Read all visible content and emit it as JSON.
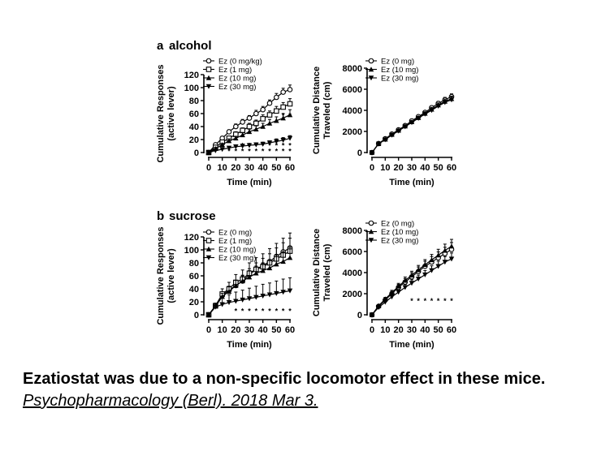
{
  "panels": [
    {
      "letter": "a",
      "name": "alcohol"
    },
    {
      "letter": "b",
      "name": "sucrose"
    }
  ],
  "caption": {
    "text": "Ezatiostat was due to a non-specific locomotor effect in these mice.",
    "source": "Psychopharmacology (Berl). 2018 Mar 3."
  },
  "chart_data": [
    {
      "id": "alcohol-responses",
      "type": "line",
      "ylabel_line1": "Cumulative Responses",
      "ylabel_line2": "(active lever)",
      "xlabel": "Time (min)",
      "xlim": [
        0,
        60
      ],
      "ylim": [
        0,
        120
      ],
      "xticks": [
        0,
        10,
        20,
        30,
        40,
        50,
        60
      ],
      "yticks": [
        0,
        20,
        40,
        60,
        80,
        100,
        120
      ],
      "legend_position": "top-left",
      "x": [
        0,
        5,
        10,
        15,
        20,
        25,
        30,
        35,
        40,
        45,
        50,
        55,
        60
      ],
      "series": [
        {
          "name": "Ez (0 mg/kg)",
          "marker": "circle",
          "values": [
            0,
            12,
            22,
            32,
            40,
            47,
            53,
            60,
            66,
            76,
            85,
            93,
            97
          ],
          "errors": [
            0,
            2,
            3,
            3,
            4,
            4,
            4,
            5,
            5,
            5,
            6,
            6,
            7
          ]
        },
        {
          "name": "Ez (1 mg)",
          "marker": "square",
          "values": [
            0,
            8,
            16,
            22,
            28,
            34,
            40,
            45,
            52,
            58,
            64,
            70,
            75
          ],
          "errors": [
            0,
            2,
            3,
            3,
            4,
            4,
            5,
            5,
            6,
            6,
            7,
            7,
            8
          ]
        },
        {
          "name": "Ez (10 mg)",
          "marker": "triangle-up",
          "values": [
            0,
            6,
            12,
            18,
            22,
            27,
            32,
            36,
            40,
            45,
            49,
            53,
            58
          ],
          "errors": [
            0,
            2,
            2,
            3,
            3,
            4,
            4,
            5,
            5,
            6,
            6,
            7,
            8
          ]
        },
        {
          "name": "Ez (30 mg)",
          "marker": "triangle-down",
          "values": [
            0,
            3,
            5,
            7,
            9,
            10,
            11,
            12,
            13,
            15,
            17,
            19,
            22
          ],
          "errors": [
            0,
            1,
            2,
            2,
            2,
            2,
            3,
            3,
            3,
            3,
            4,
            4,
            4
          ]
        }
      ],
      "significance_marks": [
        {
          "series": 3,
          "x": [
            15,
            20,
            25,
            30,
            35,
            40,
            45,
            50,
            55,
            60
          ],
          "y": 3,
          "label": "*"
        },
        {
          "series": 2,
          "x": [
            25,
            30,
            35,
            40,
            45,
            50,
            55,
            60
          ],
          "y": 12,
          "label": "*"
        },
        {
          "series": 1,
          "x": [
            55,
            60
          ],
          "y": 58,
          "label": "*"
        }
      ]
    },
    {
      "id": "alcohol-distance",
      "type": "line",
      "ylabel_line1": "Cumulative Distance",
      "ylabel_line2": "Traveled (cm)",
      "xlabel": "Time (min)",
      "xlim": [
        0,
        60
      ],
      "ylim": [
        0,
        8000
      ],
      "xticks": [
        0,
        10,
        20,
        30,
        40,
        50,
        60
      ],
      "yticks": [
        0,
        2000,
        4000,
        6000,
        8000
      ],
      "legend_position": "top-left",
      "x": [
        0,
        5,
        10,
        15,
        20,
        25,
        30,
        35,
        40,
        45,
        50,
        55,
        60
      ],
      "series": [
        {
          "name": "Ez (0 mg)",
          "marker": "circle",
          "values": [
            0,
            850,
            1300,
            1750,
            2150,
            2550,
            3000,
            3400,
            3800,
            4250,
            4650,
            5000,
            5300
          ],
          "errors": [
            0,
            40,
            60,
            80,
            90,
            110,
            120,
            140,
            160,
            180,
            200,
            230,
            260
          ]
        },
        {
          "name": "Ez (10 mg)",
          "marker": "triangle-up",
          "values": [
            0,
            830,
            1250,
            1700,
            2100,
            2500,
            2900,
            3300,
            3700,
            4100,
            4500,
            4850,
            5100
          ],
          "errors": [
            0,
            40,
            60,
            80,
            90,
            110,
            120,
            140,
            160,
            180,
            200,
            220,
            250
          ]
        },
        {
          "name": "Ez (30 mg)",
          "marker": "triangle-down",
          "values": [
            0,
            820,
            1220,
            1650,
            2050,
            2450,
            2850,
            3250,
            3650,
            4000,
            4400,
            4750,
            5000
          ],
          "errors": [
            0,
            40,
            60,
            80,
            90,
            110,
            120,
            140,
            160,
            180,
            200,
            220,
            250
          ]
        }
      ],
      "significance_marks": []
    },
    {
      "id": "sucrose-responses",
      "type": "line",
      "ylabel_line1": "Cumulative Responses",
      "ylabel_line2": "(active lever)",
      "xlabel": "Time (min)",
      "xlim": [
        0,
        60
      ],
      "ylim": [
        0,
        120
      ],
      "xticks": [
        0,
        10,
        20,
        30,
        40,
        50,
        60
      ],
      "yticks": [
        0,
        20,
        40,
        60,
        80,
        100,
        120
      ],
      "legend_position": "top-left",
      "x": [
        0,
        5,
        10,
        15,
        20,
        25,
        30,
        35,
        40,
        45,
        50,
        55,
        60
      ],
      "series": [
        {
          "name": "Ez (0 mg)",
          "marker": "circle",
          "values": [
            0,
            14,
            30,
            38,
            45,
            52,
            62,
            70,
            76,
            82,
            90,
            97,
            103
          ],
          "errors": [
            0,
            3,
            5,
            6,
            7,
            8,
            9,
            10,
            11,
            12,
            13,
            14,
            15
          ]
        },
        {
          "name": "Ez (1 mg)",
          "marker": "square",
          "values": [
            0,
            14,
            32,
            40,
            50,
            55,
            64,
            70,
            74,
            80,
            86,
            92,
            98
          ],
          "errors": [
            0,
            4,
            8,
            10,
            12,
            14,
            16,
            18,
            20,
            22,
            24,
            26,
            28
          ]
        },
        {
          "name": "Ez (10 mg)",
          "marker": "triangle-up",
          "values": [
            0,
            13,
            28,
            36,
            45,
            52,
            58,
            64,
            68,
            72,
            78,
            82,
            88
          ],
          "errors": [
            0,
            3,
            5,
            7,
            8,
            9,
            10,
            11,
            12,
            13,
            14,
            15,
            16
          ]
        },
        {
          "name": "Ez (30 mg)",
          "marker": "triangle-down",
          "values": [
            0,
            12,
            16,
            19,
            21,
            23,
            25,
            27,
            29,
            31,
            33,
            35,
            37
          ],
          "errors": [
            0,
            4,
            10,
            12,
            14,
            15,
            16,
            17,
            18,
            18,
            19,
            20,
            20
          ]
        }
      ],
      "significance_marks": [
        {
          "series": 3,
          "x": [
            20,
            25,
            30,
            35,
            40,
            45,
            50,
            55,
            60
          ],
          "y": 7,
          "label": "*"
        }
      ]
    },
    {
      "id": "sucrose-distance",
      "type": "line",
      "ylabel_line1": "Cumulative Distance",
      "ylabel_line2": "Traveled (cm)",
      "xlabel": "Time (min)",
      "xlim": [
        0,
        60
      ],
      "ylim": [
        0,
        8000
      ],
      "xticks": [
        0,
        10,
        20,
        30,
        40,
        50,
        60
      ],
      "yticks": [
        0,
        2000,
        4000,
        6000,
        8000
      ],
      "legend_position": "top-left",
      "x": [
        0,
        5,
        10,
        15,
        20,
        25,
        30,
        35,
        40,
        45,
        50,
        55,
        60
      ],
      "series": [
        {
          "name": "Ez (0 mg)",
          "marker": "circle",
          "values": [
            0,
            800,
            1400,
            2000,
            2600,
            3100,
            3600,
            4100,
            4600,
            5000,
            5400,
            5800,
            6200
          ],
          "errors": [
            0,
            80,
            150,
            220,
            280,
            330,
            380,
            430,
            480,
            520,
            560,
            600,
            650
          ]
        },
        {
          "name": "Ez (10 mg)",
          "marker": "triangle-up",
          "values": [
            0,
            850,
            1500,
            2100,
            2700,
            3250,
            3750,
            4250,
            4750,
            5200,
            5650,
            6100,
            6500
          ],
          "errors": [
            0,
            80,
            150,
            220,
            280,
            330,
            380,
            430,
            480,
            520,
            560,
            600,
            650
          ]
        },
        {
          "name": "Ez (30 mg)",
          "marker": "triangle-down",
          "values": [
            0,
            700,
            1200,
            1700,
            2150,
            2600,
            3000,
            3400,
            3800,
            4200,
            4600,
            5000,
            5300
          ],
          "errors": [
            0,
            70,
            130,
            190,
            240,
            280,
            320,
            360,
            400,
            440,
            480,
            520,
            560
          ]
        }
      ],
      "significance_marks": [
        {
          "series": 2,
          "x": [
            30,
            35,
            40,
            45,
            50,
            55,
            60
          ],
          "y": 1400,
          "label": "*"
        }
      ]
    }
  ]
}
